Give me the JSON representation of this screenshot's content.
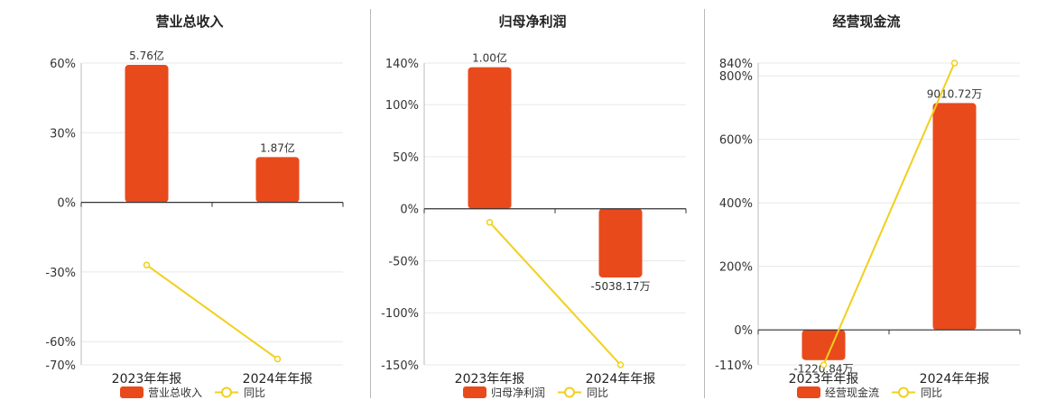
{
  "chart_data": [
    {
      "type": "bar",
      "title": "营业总收入",
      "categories": [
        "2023年年报",
        "2024年年报"
      ],
      "series": [
        {
          "name": "营业总收入",
          "type": "bar",
          "values": [
            59.2,
            19.5
          ],
          "labels": [
            "5.76亿",
            "1.87亿"
          ]
        },
        {
          "name": "同比",
          "type": "line",
          "values": [
            -27,
            -67.5
          ]
        }
      ],
      "ylim": [
        -70,
        60
      ],
      "yticks": [
        60,
        30,
        0,
        -30,
        -60,
        -70
      ],
      "ytick_labels": [
        "60%",
        "30%",
        "0%",
        "-30%",
        "-60%",
        "-70%"
      ],
      "grid": true,
      "legend": "bottom"
    },
    {
      "type": "bar",
      "title": "归母净利润",
      "categories": [
        "2023年年报",
        "2024年年报"
      ],
      "series": [
        {
          "name": "归母净利润",
          "type": "bar",
          "values": [
            136,
            -66
          ],
          "labels": [
            "1.00亿",
            "-5038.17万"
          ]
        },
        {
          "name": "同比",
          "type": "line",
          "values": [
            -13,
            -150
          ]
        }
      ],
      "ylim": [
        -150,
        140
      ],
      "yticks": [
        140,
        100,
        50,
        0,
        -50,
        -100,
        -150
      ],
      "ytick_labels": [
        "140%",
        "100%",
        "50%",
        "0%",
        "-50%",
        "-100%",
        "-150%"
      ],
      "grid": true,
      "legend": "bottom"
    },
    {
      "type": "bar",
      "title": "经营现金流",
      "categories": [
        "2023年年报",
        "2024年年报"
      ],
      "series": [
        {
          "name": "经营现金流",
          "type": "bar",
          "values": [
            -95,
            714
          ],
          "labels": [
            "-1220.84万",
            "9010.72万"
          ]
        },
        {
          "name": "同比",
          "type": "line",
          "values": [
            -110,
            840
          ]
        }
      ],
      "ylim": [
        -110,
        840
      ],
      "yticks": [
        840,
        800,
        600,
        400,
        200,
        0,
        -110
      ],
      "ytick_labels": [
        "840%",
        "800%",
        "600%",
        "400%",
        "200%",
        "0%",
        "-110%"
      ],
      "grid": true,
      "legend": "bottom"
    }
  ],
  "colors": {
    "bar": "#e84a1c",
    "line": "#f2cf1c",
    "line_marker_fill": "#ffffff",
    "grid": "#e8e8e8",
    "axis": "#333333",
    "text": "#333333"
  }
}
